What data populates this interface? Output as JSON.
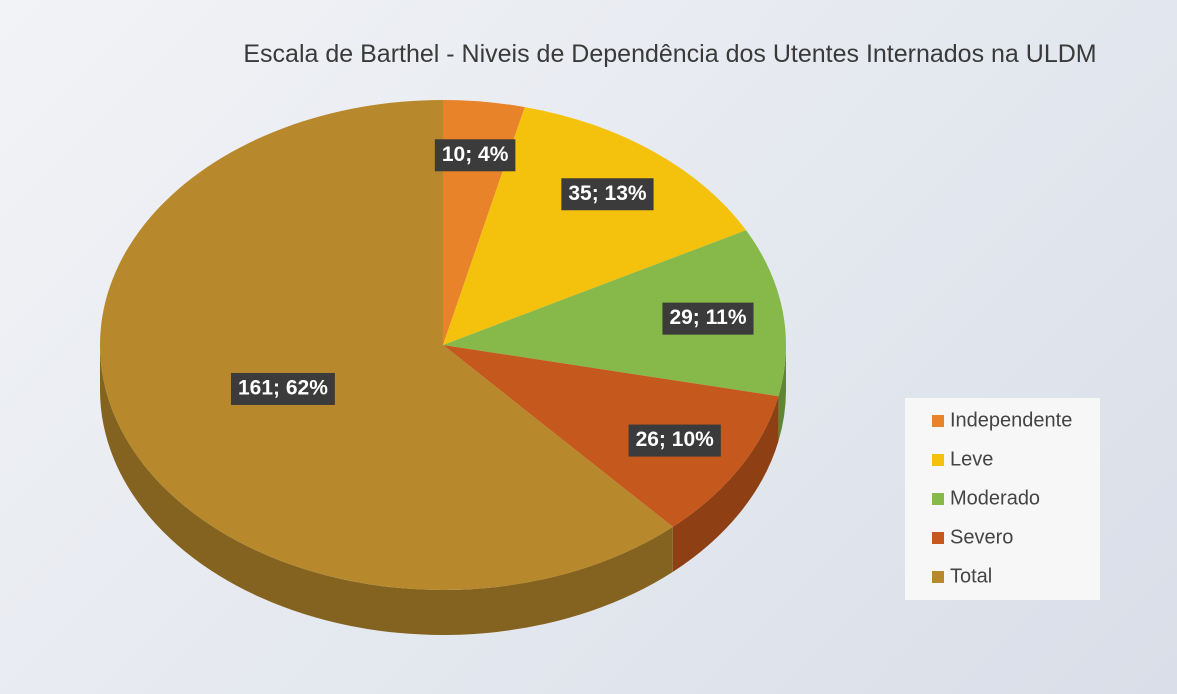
{
  "chart_data": {
    "type": "pie3d",
    "title": "Escala de Barthel - Niveis de Dependência dos Utentes Internados na ULDM",
    "categories": [
      "Independente",
      "Leve",
      "Moderado",
      "Severo",
      "Total"
    ],
    "values": [
      10,
      35,
      29,
      26,
      161
    ],
    "value_labels": [
      "10; 4%",
      "35; 13%",
      "29; 11%",
      "26; 10%",
      "161; 62%"
    ],
    "colors": [
      "#e8832a",
      "#f4c20d",
      "#86b94a",
      "#c5581c",
      "#b8892c"
    ],
    "legend": "right"
  }
}
